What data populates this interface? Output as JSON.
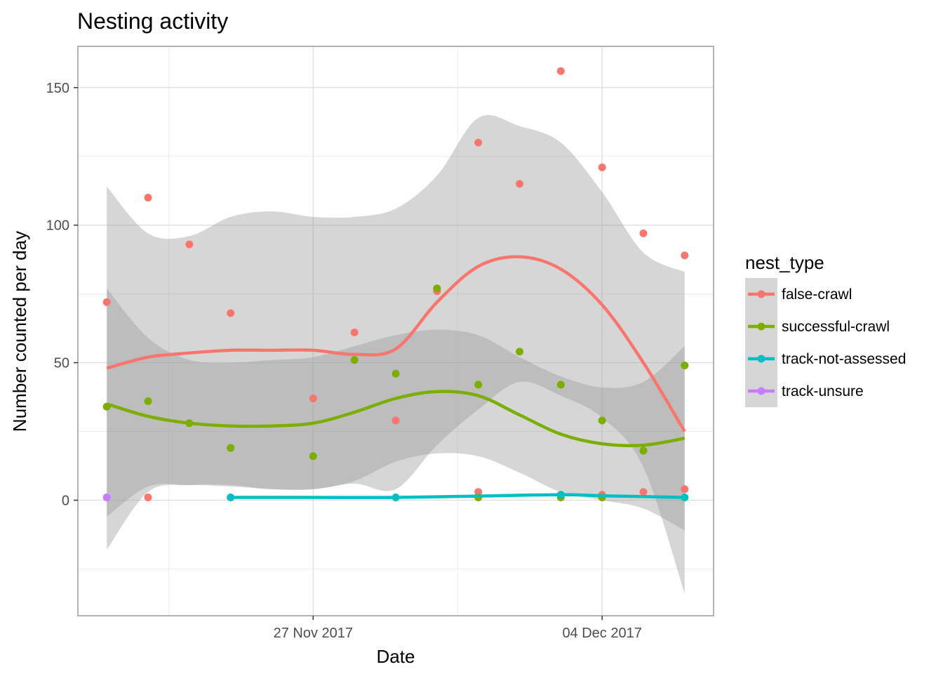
{
  "chart_data": {
    "type": "scatter",
    "title": "Nesting activity",
    "xlabel": "Date",
    "ylabel": "Number counted per day",
    "x_ticks": [
      "2017-11-27",
      "2017-12-04"
    ],
    "x_tick_labels": [
      "27 Nov 2017",
      "04 Dec 2017"
    ],
    "xlim": [
      "2017-11-22",
      "2017-12-06"
    ],
    "ylim": [
      -42,
      165
    ],
    "y_ticks": [
      0,
      50,
      100,
      150
    ],
    "grid": true,
    "legend": {
      "title": "nest_type",
      "position": "right"
    },
    "series": [
      {
        "name": "false-crawl",
        "color": "#F8766D",
        "points": [
          [
            "2017-11-22",
            72
          ],
          [
            "2017-11-23",
            110
          ],
          [
            "2017-11-23",
            1
          ],
          [
            "2017-11-24",
            93
          ],
          [
            "2017-11-25",
            68
          ],
          [
            "2017-11-27",
            37
          ],
          [
            "2017-11-28",
            61
          ],
          [
            "2017-11-29",
            29
          ],
          [
            "2017-11-30",
            76
          ],
          [
            "2017-12-01",
            130
          ],
          [
            "2017-12-01",
            3
          ],
          [
            "2017-12-02",
            115
          ],
          [
            "2017-12-03",
            156
          ],
          [
            "2017-12-04",
            121
          ],
          [
            "2017-12-04",
            2
          ],
          [
            "2017-12-05",
            97
          ],
          [
            "2017-12-05",
            3
          ],
          [
            "2017-12-06",
            89
          ],
          [
            "2017-12-06",
            4
          ]
        ],
        "smooth": [
          [
            "2017-11-22",
            48
          ],
          [
            "2017-11-23",
            52
          ],
          [
            "2017-11-24",
            53.5
          ],
          [
            "2017-11-25",
            54.5
          ],
          [
            "2017-11-26",
            54.5
          ],
          [
            "2017-11-27",
            54.5
          ],
          [
            "2017-11-28",
            53
          ],
          [
            "2017-11-29",
            55
          ],
          [
            "2017-11-30",
            72
          ],
          [
            "2017-12-01",
            85
          ],
          [
            "2017-12-02",
            88.5
          ],
          [
            "2017-12-03",
            84
          ],
          [
            "2017-12-04",
            71
          ],
          [
            "2017-12-05",
            50
          ],
          [
            "2017-12-06",
            25
          ]
        ],
        "band_upper": [
          [
            "2017-11-22",
            114
          ],
          [
            "2017-11-23",
            97
          ],
          [
            "2017-11-24",
            96
          ],
          [
            "2017-11-25",
            103
          ],
          [
            "2017-11-26",
            105
          ],
          [
            "2017-11-27",
            103
          ],
          [
            "2017-11-28",
            103
          ],
          [
            "2017-11-29",
            106
          ],
          [
            "2017-11-30",
            118
          ],
          [
            "2017-12-01",
            139
          ],
          [
            "2017-12-02",
            136
          ],
          [
            "2017-12-03",
            130
          ],
          [
            "2017-12-04",
            112
          ],
          [
            "2017-12-05",
            90
          ],
          [
            "2017-12-06",
            83
          ]
        ],
        "band_lower": [
          [
            "2017-11-22",
            -18
          ],
          [
            "2017-11-23",
            3
          ],
          [
            "2017-11-24",
            5.5
          ],
          [
            "2017-11-25",
            5.5
          ],
          [
            "2017-11-26",
            4
          ],
          [
            "2017-11-27",
            4
          ],
          [
            "2017-11-28",
            6
          ],
          [
            "2017-11-29",
            4
          ],
          [
            "2017-11-30",
            20
          ],
          [
            "2017-12-01",
            33
          ],
          [
            "2017-12-02",
            43
          ],
          [
            "2017-12-03",
            38
          ],
          [
            "2017-12-04",
            30
          ],
          [
            "2017-12-05",
            12
          ],
          [
            "2017-12-06",
            -34
          ]
        ]
      },
      {
        "name": "successful-crawl",
        "color": "#7CAE00",
        "points": [
          [
            "2017-11-22",
            34
          ],
          [
            "2017-11-23",
            36
          ],
          [
            "2017-11-24",
            28
          ],
          [
            "2017-11-25",
            19
          ],
          [
            "2017-11-27",
            16
          ],
          [
            "2017-11-28",
            51
          ],
          [
            "2017-11-29",
            46
          ],
          [
            "2017-11-30",
            77
          ],
          [
            "2017-12-01",
            42
          ],
          [
            "2017-12-01",
            1
          ],
          [
            "2017-12-02",
            54
          ],
          [
            "2017-12-03",
            42
          ],
          [
            "2017-12-03",
            1
          ],
          [
            "2017-12-04",
            29
          ],
          [
            "2017-12-04",
            1
          ],
          [
            "2017-12-05",
            18
          ],
          [
            "2017-12-06",
            49
          ]
        ],
        "smooth": [
          [
            "2017-11-22",
            35
          ],
          [
            "2017-11-23",
            30.5
          ],
          [
            "2017-11-24",
            28
          ],
          [
            "2017-11-25",
            27
          ],
          [
            "2017-11-26",
            27
          ],
          [
            "2017-11-27",
            28
          ],
          [
            "2017-11-28",
            32
          ],
          [
            "2017-11-29",
            37
          ],
          [
            "2017-11-30",
            39.5
          ],
          [
            "2017-12-01",
            38
          ],
          [
            "2017-12-02",
            31
          ],
          [
            "2017-12-03",
            24
          ],
          [
            "2017-12-04",
            20.5
          ],
          [
            "2017-12-05",
            20
          ],
          [
            "2017-12-06",
            22.5
          ]
        ],
        "band_upper": [
          [
            "2017-11-22",
            77
          ],
          [
            "2017-11-23",
            59
          ],
          [
            "2017-11-24",
            51
          ],
          [
            "2017-11-25",
            50
          ],
          [
            "2017-11-26",
            51
          ],
          [
            "2017-11-27",
            52
          ],
          [
            "2017-11-28",
            56
          ],
          [
            "2017-11-29",
            60
          ],
          [
            "2017-11-30",
            62
          ],
          [
            "2017-12-01",
            60
          ],
          [
            "2017-12-02",
            52
          ],
          [
            "2017-12-03",
            45
          ],
          [
            "2017-12-04",
            41
          ],
          [
            "2017-12-05",
            43
          ],
          [
            "2017-12-06",
            56
          ]
        ],
        "band_lower": [
          [
            "2017-11-22",
            -6
          ],
          [
            "2017-11-23",
            5
          ],
          [
            "2017-11-24",
            5.5
          ],
          [
            "2017-11-25",
            5
          ],
          [
            "2017-11-26",
            4
          ],
          [
            "2017-11-27",
            4
          ],
          [
            "2017-11-28",
            7
          ],
          [
            "2017-11-29",
            14
          ],
          [
            "2017-11-30",
            17
          ],
          [
            "2017-12-01",
            16
          ],
          [
            "2017-12-02",
            10
          ],
          [
            "2017-12-03",
            3
          ],
          [
            "2017-12-04",
            0
          ],
          [
            "2017-12-05",
            -3
          ],
          [
            "2017-12-06",
            -11
          ]
        ]
      },
      {
        "name": "track-not-assessed",
        "color": "#00BFC4",
        "points": [
          [
            "2017-11-25",
            1
          ],
          [
            "2017-11-29",
            1
          ],
          [
            "2017-12-03",
            2
          ],
          [
            "2017-12-06",
            1
          ]
        ],
        "smooth": [
          [
            "2017-11-25",
            1
          ],
          [
            "2017-11-27",
            1
          ],
          [
            "2017-11-29",
            1
          ],
          [
            "2017-12-01",
            1.5
          ],
          [
            "2017-12-03",
            2
          ],
          [
            "2017-12-04",
            1.6
          ],
          [
            "2017-12-06",
            1
          ]
        ]
      },
      {
        "name": "track-unsure",
        "color": "#C77CFF",
        "points": [
          [
            "2017-11-22",
            1
          ]
        ]
      }
    ]
  }
}
